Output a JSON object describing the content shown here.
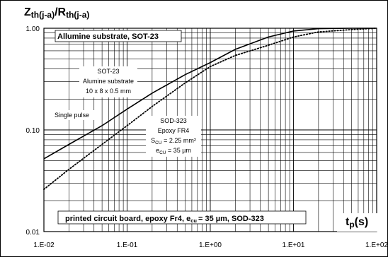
{
  "chart_data": {
    "type": "line",
    "ylabel": {
      "main": "Z",
      "sub1": "th(j-a)",
      "sep": "/R",
      "sub2": "th(j-a)"
    },
    "xlabel": {
      "main": "t",
      "sub": "p",
      "unit": "(s)"
    },
    "x_scale": "log",
    "y_scale": "log",
    "xlim": [
      0.01,
      100
    ],
    "ylim": [
      0.01,
      1
    ],
    "grid": true,
    "x_ticks": [
      "1.E-02",
      "1.E-01",
      "1.E+00",
      "1.E+01",
      "1.E+02"
    ],
    "y_ticks": [
      "1.00",
      "0.10",
      "0.01"
    ],
    "series": [
      {
        "name": "SOT-23",
        "style": "solid",
        "x": [
          0.01,
          0.02,
          0.05,
          0.1,
          0.2,
          0.5,
          1,
          2,
          5,
          10,
          20,
          50,
          100
        ],
        "y": [
          0.052,
          0.072,
          0.11,
          0.16,
          0.23,
          0.35,
          0.46,
          0.62,
          0.82,
          0.94,
          0.99,
          1.0,
          1.0
        ]
      },
      {
        "name": "SOD-323",
        "style": "dotted",
        "x": [
          0.01,
          0.02,
          0.05,
          0.1,
          0.2,
          0.5,
          1,
          2,
          5,
          10,
          20,
          50,
          100
        ],
        "y": [
          0.026,
          0.041,
          0.072,
          0.11,
          0.17,
          0.29,
          0.42,
          0.54,
          0.68,
          0.82,
          0.92,
          0.97,
          1.0
        ]
      }
    ],
    "annotations": {
      "top_box": "Allumine substrate, SOT-23",
      "sot23": [
        "SOT-23",
        "Alumine substrate",
        "10 x 8 x 0.5 mm"
      ],
      "single_pulse": "Single pulse",
      "sod323": {
        "line1": "SOD-323",
        "line2": "Epoxy FR4",
        "line3_pre": "S",
        "line3_sub": "CU",
        "line3_post": " = 2.25 mm²",
        "line4_pre": "e",
        "line4_sub": "CU",
        "line4_post": " = 35 µm"
      },
      "bottom_box": {
        "pre": "printed circuit board, epoxy Fr4, e",
        "sub": "cu",
        "post": "= 35 µm, SOD-323"
      }
    }
  },
  "colors": {
    "line": "#000000",
    "grid": "#000000",
    "box_bg": "#ffffff"
  }
}
